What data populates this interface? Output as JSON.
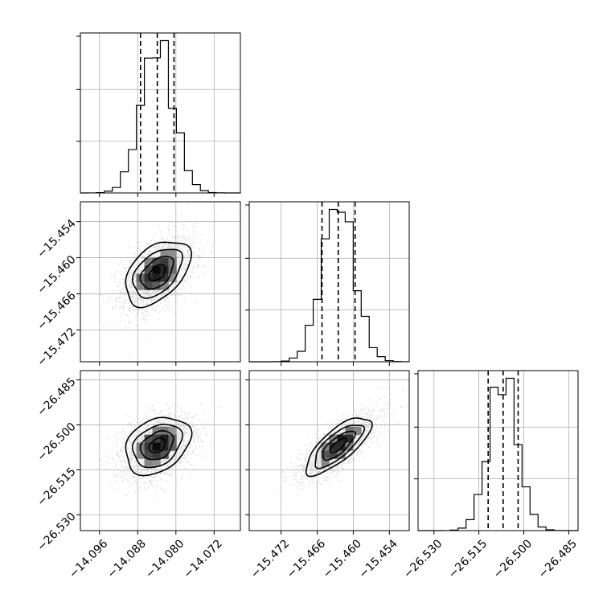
{
  "chart_data": {
    "type": "corner",
    "title": "",
    "parameters": [
      {
        "name": "",
        "mean": -14.0839,
        "std": 0.0034,
        "range": [
          -14.1,
          -14.0665
        ],
        "quantiles": [
          -14.0874,
          -14.0839,
          -14.0804
        ],
        "ticks": [
          -14.096,
          -14.088,
          -14.08,
          -14.072
        ],
        "tick_labels": [
          "−14.096",
          "−14.088",
          "−14.080",
          "−14.072"
        ]
      },
      {
        "name": "",
        "mean": -15.4625,
        "std": 0.0027,
        "range": [
          -15.4773,
          -15.4507
        ],
        "quantiles": [
          -15.4652,
          -15.4625,
          -15.4597
        ],
        "ticks": [
          -15.472,
          -15.466,
          -15.46,
          -15.454
        ],
        "tick_labels": [
          "−15.472",
          "−15.466",
          "−15.460",
          "−15.454"
        ]
      },
      {
        "name": "",
        "mean": -26.5069,
        "std": 0.0048,
        "range": [
          -26.5353,
          -26.4819
        ],
        "quantiles": [
          -26.5119,
          -26.5069,
          -26.5019
        ],
        "ticks": [
          -26.53,
          -26.515,
          -26.5,
          -26.485
        ],
        "tick_labels": [
          "−26.530",
          "−26.515",
          "−26.500",
          "−26.485"
        ]
      }
    ],
    "correlations": [
      {
        "pair": [
          0,
          1
        ],
        "rho": 0.45
      },
      {
        "pair": [
          0,
          2
        ],
        "rho": 0.3
      },
      {
        "pair": [
          1,
          2
        ],
        "rho": 0.75
      }
    ],
    "contour_levels_sigma": [
      0.5,
      1.0,
      1.5,
      2.0
    ],
    "histogram_bins": 20,
    "grid": true,
    "legend": "none"
  }
}
